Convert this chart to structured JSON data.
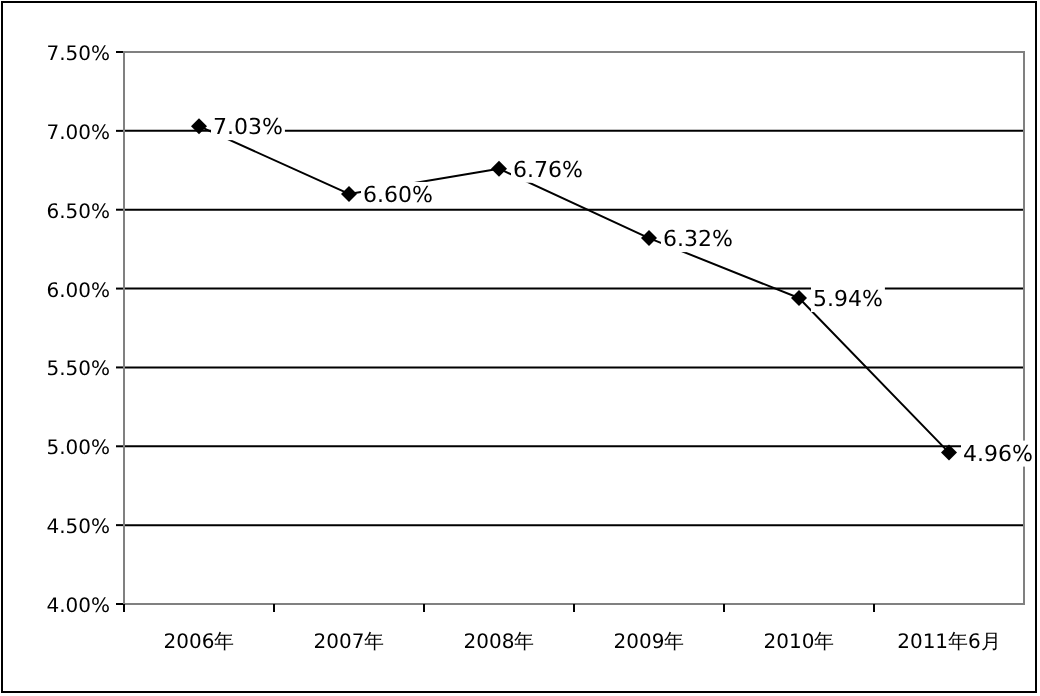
{
  "chart_data": {
    "type": "line",
    "categories": [
      "2006年",
      "2007年",
      "2008年",
      "2009年",
      "2010年",
      "2011年6月"
    ],
    "series": [
      {
        "color": "#000000",
        "values": [
          7.03,
          6.6,
          6.76,
          6.32,
          5.94,
          4.96
        ],
        "value_labels": [
          "7.03%",
          "6.60%",
          "6.76%",
          "6.32%",
          "5.94%",
          "4.96%"
        ]
      }
    ],
    "ylim": [
      4,
      7.5
    ],
    "yticks": [
      {
        "value": 4,
        "label": "4.00%"
      },
      {
        "value": 4.5,
        "label": "4.50%"
      },
      {
        "value": 5,
        "label": "5.00%"
      },
      {
        "value": 5.5,
        "label": "5.50%"
      },
      {
        "value": 6,
        "label": "6.00%"
      },
      {
        "value": 6.5,
        "label": "6.50%"
      },
      {
        "value": 7,
        "label": "7.00%"
      },
      {
        "value": 7.5,
        "label": "7.50%"
      }
    ],
    "grid": "y",
    "marker": "diamond",
    "line_style": "solid"
  }
}
